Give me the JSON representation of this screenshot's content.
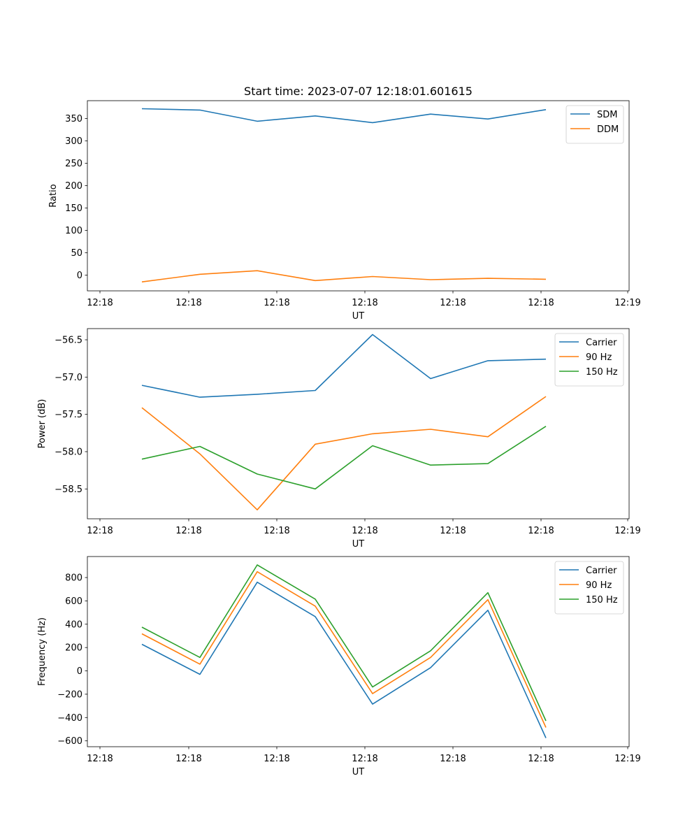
{
  "figure_title": "Start time: 2023-07-07 12:18:01.601615",
  "chart_data": [
    {
      "type": "line",
      "title": "Start time: 2023-07-07 12:18:01.601615",
      "xlabel": "UT",
      "ylabel": "Ratio",
      "x": [
        1,
        2,
        3,
        4,
        5,
        6,
        7,
        8
      ],
      "xlim": [
        0.25,
        9.45
      ],
      "xticks": [
        0.45,
        1.98,
        3.0,
        4.5,
        5.0,
        6.5,
        8.0,
        9.45
      ],
      "xtick_positions": [
        0.45,
        1.98,
        3.52,
        5.0,
        6.5,
        8.0,
        9.5,
        9.45
      ],
      "xtick_labels": [
        "12:18",
        "12:18",
        "12:18",
        "12:18",
        "12:18",
        "12:18",
        "12:18",
        "12:19"
      ],
      "ylim": [
        -35,
        390
      ],
      "yticks": [
        0,
        50,
        100,
        150,
        200,
        250,
        300,
        350
      ],
      "legend_position": "top-right",
      "series": [
        {
          "name": "SDM",
          "color": "#1f77b4",
          "values": [
            372,
            369,
            344,
            356,
            341,
            360,
            349,
            370
          ]
        },
        {
          "name": "DDM",
          "color": "#ff7f0e",
          "values": [
            -15,
            2,
            10,
            -12,
            -3,
            -10,
            -7,
            -9
          ]
        }
      ]
    },
    {
      "type": "line",
      "title": "",
      "xlabel": "UT",
      "ylabel": "Power (dB)",
      "x": [
        1,
        2,
        3,
        4,
        5,
        6,
        7,
        8
      ],
      "xlim": [
        0.25,
        9.45
      ],
      "xtick_labels": [
        "12:18",
        "12:18",
        "12:18",
        "12:18",
        "12:18",
        "12:18",
        "12:18",
        "12:19"
      ],
      "ylim": [
        -58.9,
        -56.35
      ],
      "yticks": [
        -58.5,
        -58.0,
        -57.5,
        -57.0,
        -56.5
      ],
      "ytick_labels": [
        "−58.5",
        "−58.0",
        "−57.5",
        "−57.0",
        "−56.5"
      ],
      "legend_position": "top-right",
      "series": [
        {
          "name": "Carrier",
          "color": "#1f77b4",
          "values": [
            -57.11,
            -57.27,
            -57.23,
            -57.18,
            -56.43,
            -57.02,
            -56.78,
            -56.76
          ]
        },
        {
          "name": "90 Hz",
          "color": "#ff7f0e",
          "values": [
            -57.41,
            -58.03,
            -58.78,
            -57.9,
            -57.76,
            -57.7,
            -57.8,
            -57.26
          ]
        },
        {
          "name": "150 Hz",
          "color": "#2ca02c",
          "values": [
            -58.1,
            -57.93,
            -58.3,
            -58.5,
            -57.92,
            -58.18,
            -58.16,
            -57.66
          ]
        }
      ]
    },
    {
      "type": "line",
      "title": "",
      "xlabel": "UT",
      "ylabel": "Frequency (Hz)",
      "x": [
        1,
        2,
        3,
        4,
        5,
        6,
        7,
        8
      ],
      "xlim": [
        0.25,
        9.45
      ],
      "xtick_labels": [
        "12:18",
        "12:18",
        "12:18",
        "12:18",
        "12:18",
        "12:18",
        "12:18",
        "12:19"
      ],
      "ylim": [
        -650,
        980
      ],
      "yticks": [
        -600,
        -400,
        -200,
        0,
        200,
        400,
        600,
        800
      ],
      "ytick_labels": [
        "−600",
        "−400",
        "−200",
        "0",
        "200",
        "400",
        "600",
        "800"
      ],
      "legend_position": "top-right",
      "series": [
        {
          "name": "Carrier",
          "color": "#1f77b4",
          "values": [
            228,
            -30,
            760,
            465,
            -285,
            28,
            520,
            -575
          ]
        },
        {
          "name": "90 Hz",
          "color": "#ff7f0e",
          "values": [
            318,
            58,
            850,
            555,
            -195,
            115,
            610,
            -485
          ]
        },
        {
          "name": "150 Hz",
          "color": "#2ca02c",
          "values": [
            375,
            115,
            908,
            615,
            -138,
            172,
            670,
            -428
          ]
        }
      ]
    }
  ]
}
